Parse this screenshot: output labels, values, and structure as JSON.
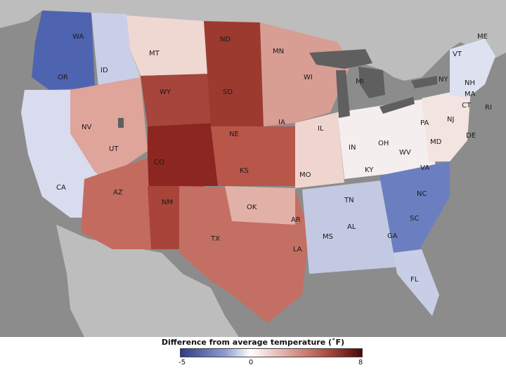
{
  "map": {
    "state_labels": [
      "WA",
      "OR",
      "CA",
      "ID",
      "NV",
      "MT",
      "WY",
      "UT",
      "AZ",
      "CO",
      "NM",
      "ND",
      "SD",
      "NE",
      "KS",
      "OK",
      "TX",
      "MN",
      "IA",
      "MO",
      "AR",
      "LA",
      "WI",
      "IL",
      "MI",
      "IN",
      "OH",
      "KY",
      "TN",
      "MS",
      "AL",
      "GA",
      "FL",
      "SC",
      "NC",
      "VA",
      "WV",
      "PA",
      "NY",
      "MD",
      "DE",
      "NJ",
      "CT",
      "RI",
      "MA",
      "VT",
      "NH",
      "ME"
    ],
    "colors": {
      "ocean": "#8c8c8c",
      "land_outside": "#b0b0b0",
      "great_lakes": "#5f5f5f",
      "cold_max": "#2d3a8c",
      "neutral": "#ffffff",
      "warm_max": "#4a0808"
    }
  },
  "legend": {
    "title": "Difference from average temperature (˚F)",
    "min_label": "-5",
    "mid_label": "0",
    "max_label": "8"
  }
}
